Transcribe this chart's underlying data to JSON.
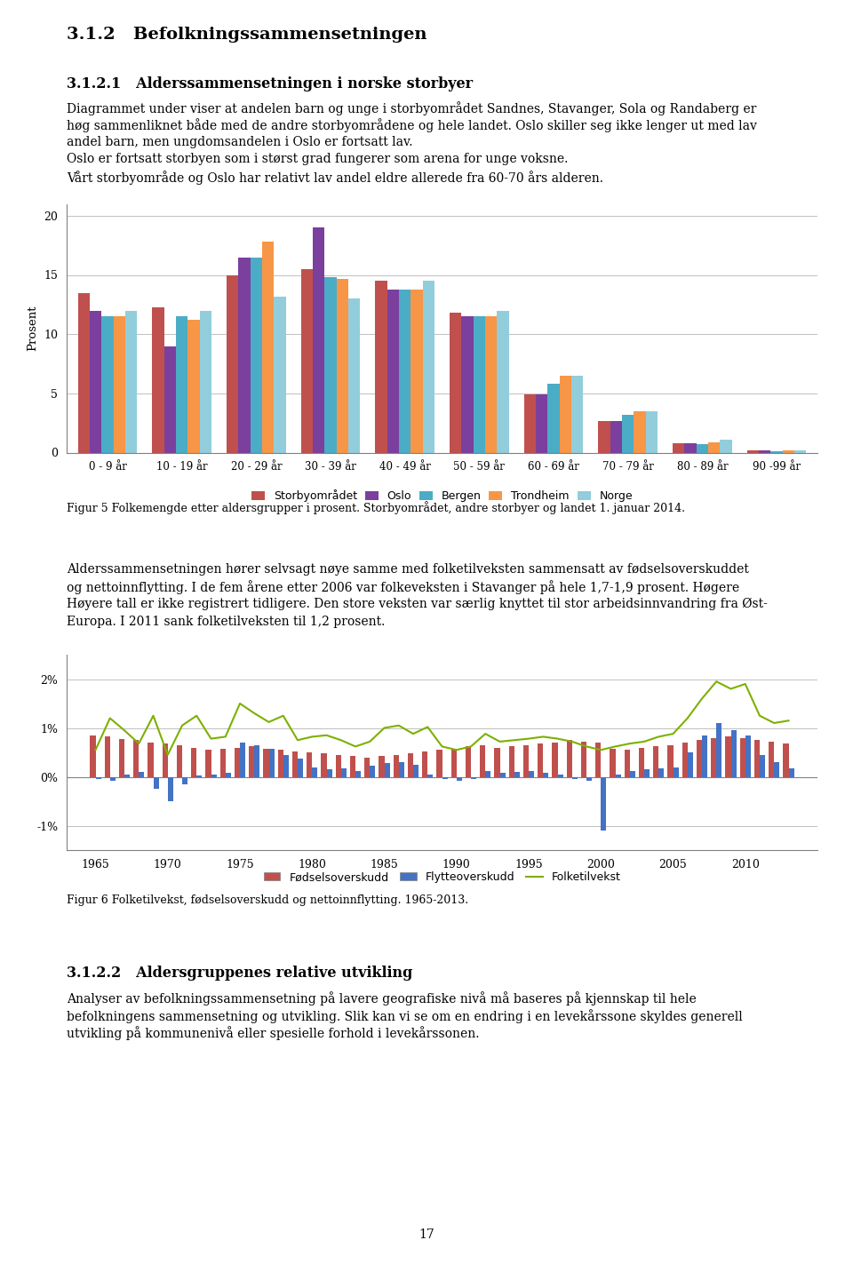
{
  "title1": "3.1.2   Befolkningssammensetningen",
  "subtitle1": "3.1.2.1   Alderssammensetningen i norske storbyer",
  "text1a": "Diagrammet under viser at andelen barn og unge i storbyområdet Sandnes, Stavanger, Sola og Randaberg er",
  "text1b": "høg sammenliknet både med de andre storbyområdene og hele landet. Oslo skiller seg ikke lenger ut med lav",
  "text1c": "andel barn, men ungdomsandelen i Oslo er fortsatt lav.",
  "text1d": "Oslo er fortsatt storbyen som i størst grad fungerer som arena for unge voksne.",
  "text1e": "Vårt storbyområde og Oslo har relativt lav andel eldre allerede fra 60-70 års alderen.",
  "fig5_caption": "Figur 5 Folkemengde etter aldersgrupper i prosent. Storbyområdet, andre storbyer og landet 1. januar 2014.",
  "age_groups": [
    "0 - 9 år",
    "10 - 19 år",
    "20 - 29 år",
    "30 - 39 år",
    "40 - 49 år",
    "50 - 59 år",
    "60 - 69 år",
    "70 - 79 år",
    "80 - 89 år",
    "90 -99 år"
  ],
  "series_labels": [
    "Storbyområdet",
    "Oslo",
    "Bergen",
    "Trondheim",
    "Norge"
  ],
  "series_colors": [
    "#C0504D",
    "#7B3F9E",
    "#4BACC6",
    "#F79646",
    "#92CDDC"
  ],
  "bar_data_all": {
    "Storbyområdet": [
      13.5,
      12.3,
      15.0,
      15.5,
      14.5,
      11.8,
      4.9,
      2.7,
      0.8,
      0.2
    ],
    "Oslo": [
      12.0,
      9.0,
      16.5,
      19.0,
      13.8,
      11.5,
      4.9,
      2.7,
      0.8,
      0.2
    ],
    "Bergen": [
      11.5,
      11.5,
      16.5,
      14.8,
      13.8,
      11.5,
      5.8,
      3.2,
      0.7,
      0.1
    ],
    "Trondheim": [
      11.5,
      11.2,
      17.8,
      14.7,
      13.8,
      11.5,
      6.5,
      3.5,
      0.9,
      0.2
    ],
    "Norge": [
      12.0,
      12.0,
      13.2,
      13.0,
      14.5,
      12.0,
      6.5,
      3.5,
      1.1,
      0.2
    ]
  },
  "fig5_ylabel": "Prosent",
  "fig5_ylim": [
    0,
    21
  ],
  "fig5_yticks": [
    0,
    5,
    10,
    15,
    20
  ],
  "text2a": "Alderssammensetningen hører selvsagt nøye samme med folketilveksten sammensatt av fødselsoverskuddet",
  "text2b": "og nettoinnflytting. I de fem årene etter 2006 var folkeveksten i Stavanger på hele 1,7-1,9 prosent. Høgere",
  "text2c": "Høyere tall er ikke registrert tidligere. Den store veksten var særlig knyttet til stor arbeidsinnvandring fra Øst-",
  "text2d": "Europa. I 2011 sank folketilveksten til 1,2 prosent.",
  "fig6_caption": "Figur 6 Folketilvekst, fødselsoverskudd og nettoinnflytting. 1965-2013.",
  "fig6_years": [
    1965,
    1966,
    1967,
    1968,
    1969,
    1970,
    1971,
    1972,
    1973,
    1974,
    1975,
    1976,
    1977,
    1978,
    1979,
    1980,
    1981,
    1982,
    1983,
    1984,
    1985,
    1986,
    1987,
    1988,
    1989,
    1990,
    1991,
    1992,
    1993,
    1994,
    1995,
    1996,
    1997,
    1998,
    1999,
    2000,
    2001,
    2002,
    2003,
    2004,
    2005,
    2006,
    2007,
    2008,
    2009,
    2010,
    2011,
    2012,
    2013
  ],
  "fodselsoverskudd": [
    0.85,
    0.82,
    0.78,
    0.75,
    0.7,
    0.68,
    0.65,
    0.6,
    0.55,
    0.58,
    0.6,
    0.62,
    0.58,
    0.55,
    0.52,
    0.5,
    0.48,
    0.45,
    0.42,
    0.4,
    0.42,
    0.45,
    0.48,
    0.52,
    0.55,
    0.58,
    0.62,
    0.65,
    0.6,
    0.62,
    0.65,
    0.68,
    0.7,
    0.75,
    0.72,
    0.7,
    0.58,
    0.55,
    0.6,
    0.62,
    0.65,
    0.7,
    0.75,
    0.8,
    0.82,
    0.8,
    0.75,
    0.72,
    0.68
  ],
  "flytteoverskudd": [
    -0.05,
    -0.08,
    0.05,
    0.1,
    -0.25,
    -0.5,
    -0.15,
    0.02,
    0.05,
    0.08,
    0.7,
    0.65,
    0.58,
    0.45,
    0.38,
    0.2,
    0.15,
    0.18,
    0.12,
    0.22,
    0.28,
    0.3,
    0.25,
    0.05,
    -0.05,
    -0.08,
    -0.05,
    0.12,
    0.08,
    0.1,
    0.12,
    0.08,
    0.05,
    -0.05,
    -0.08,
    -1.1,
    0.05,
    0.12,
    0.15,
    0.18,
    0.2,
    0.5,
    0.85,
    1.1,
    0.95,
    0.85,
    0.45,
    0.3,
    0.18
  ],
  "folketilvekst": [
    0.55,
    1.2,
    0.95,
    0.68,
    1.25,
    0.45,
    1.05,
    1.25,
    0.78,
    0.82,
    1.5,
    1.3,
    1.12,
    1.25,
    0.75,
    0.82,
    0.85,
    0.75,
    0.62,
    0.72,
    1.0,
    1.05,
    0.88,
    1.02,
    0.62,
    0.55,
    0.62,
    0.88,
    0.72,
    0.75,
    0.78,
    0.82,
    0.78,
    0.72,
    0.62,
    0.55,
    0.62,
    0.68,
    0.72,
    0.82,
    0.88,
    1.2,
    1.6,
    1.95,
    1.8,
    1.9,
    1.25,
    1.1,
    1.15
  ],
  "fig6_ytick_labels": [
    "-1%",
    "0%",
    "1%",
    "2%"
  ],
  "fig6_yticks_vals": [
    -1.0,
    0.0,
    1.0,
    2.0
  ],
  "fig6_ylim": [
    -1.5,
    2.5
  ],
  "fig6_xticks": [
    1965,
    1970,
    1975,
    1980,
    1985,
    1990,
    1995,
    2000,
    2005,
    2010
  ],
  "subtitle2": "3.1.2.2   Aldersgruppenes relative utvikling",
  "text3a": "Analyser av befolkningssammensetning på lavere geografiske nivå må baseres på kjennskap til hele",
  "text3b": "befolkningens sammensetning og utvikling. Slik kan vi se om en endring i en levekårssone skyldes generell",
  "text3c": "utvikling på kommunenivå eller spesielle forhold i levekårssonen.",
  "page_number": "17",
  "body_fontsize": 10.0,
  "title_fontsize": 14.0,
  "subtitle_fontsize": 11.5
}
